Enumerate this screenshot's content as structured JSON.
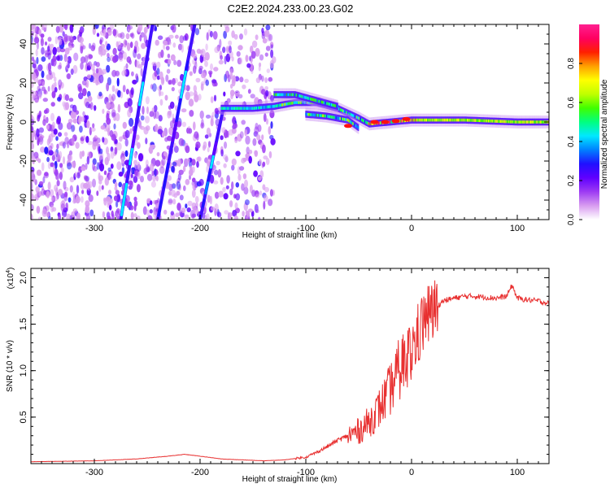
{
  "title": "C2E2.2024.233.00.23.G02",
  "chart_data": [
    {
      "type": "heatmap",
      "xlabel": "Height of straight line (km)",
      "ylabel": "Frequency (Hz)",
      "xlim": [
        -360,
        130
      ],
      "ylim": [
        -50,
        50
      ],
      "xticks": [
        -300,
        -200,
        -100,
        0,
        100
      ],
      "xtick_labels": [
        "-300",
        "-200",
        "-100",
        "0",
        "100"
      ],
      "yticks": [
        -40,
        -20,
        0,
        20,
        40
      ],
      "ytick_labels": [
        "-40",
        "-20",
        "0",
        "20",
        "40"
      ],
      "colorbar": {
        "label": "Normalized spectral amplitude",
        "range": [
          0,
          1
        ],
        "ticks": [
          0.0,
          0.2,
          0.4,
          0.6,
          0.8
        ],
        "tick_labels": [
          "0.0",
          "0.2",
          "0.4",
          "0.6",
          "0.8"
        ],
        "colors": [
          "#ffffff",
          "#d89cf0",
          "#9d3bf3",
          "#6000ff",
          "#2010ff",
          "#0080ff",
          "#00e8ff",
          "#00ff80",
          "#40ff00",
          "#c0ff00",
          "#ffff00",
          "#ffa000",
          "#ff2000",
          "#ff0060",
          "#ff2090"
        ]
      },
      "features": [
        {
          "name": "main signal track",
          "x": [
            -180,
            -150,
            -130,
            -110,
            -90,
            -70,
            -50,
            -40,
            -20,
            0,
            50,
            100,
            130
          ],
          "y": [
            7,
            7,
            8,
            10,
            10,
            7,
            2,
            -1,
            0,
            1,
            1,
            0,
            0
          ]
        },
        {
          "name": "upper branch",
          "x": [
            -130,
            -110,
            -90,
            -70
          ],
          "y": [
            14,
            14,
            11,
            8
          ]
        },
        {
          "name": "lower branch",
          "x": [
            -100,
            -80,
            -60,
            -50
          ],
          "y": [
            4,
            3,
            1,
            -3
          ]
        },
        {
          "name": "diagonal trace 1",
          "x": [
            -275,
            -245
          ],
          "y": [
            -50,
            50
          ]
        },
        {
          "name": "diagonal trace 2",
          "x": [
            -240,
            -205
          ],
          "y": [
            -50,
            50
          ]
        },
        {
          "name": "diagonal trace 3",
          "x": [
            -200,
            -178
          ],
          "y": [
            -50,
            7
          ]
        }
      ]
    },
    {
      "type": "line",
      "xlabel": "Height of straight line (km)",
      "ylabel": "SNR (10 * v/v)",
      "y_multiplier": "(x10",
      "y_multiplier_exp": "4",
      "xlim": [
        -360,
        130
      ],
      "ylim": [
        0,
        2.1
      ],
      "xticks": [
        -300,
        -200,
        -100,
        0,
        100
      ],
      "xtick_labels": [
        "-300",
        "-200",
        "-100",
        "0",
        "100"
      ],
      "yticks": [
        0.5,
        1.0,
        1.5,
        2.0
      ],
      "ytick_labels": [
        "0.5",
        "1.0",
        "1.5",
        "2.0"
      ],
      "color": "#e83030",
      "series": [
        {
          "x": [
            -360,
            -300,
            -260,
            -230,
            -215,
            -200,
            -180,
            -160,
            -140,
            -120,
            -100,
            -90,
            -80,
            -70,
            -60,
            -50,
            -40,
            -30,
            -20,
            -10,
            0,
            5,
            10,
            15,
            20,
            25,
            30,
            40,
            50,
            60,
            70,
            80,
            90,
            95,
            100,
            110,
            120,
            130
          ],
          "y": [
            0.02,
            0.03,
            0.05,
            0.08,
            0.1,
            0.08,
            0.05,
            0.04,
            0.03,
            0.04,
            0.07,
            0.12,
            0.18,
            0.25,
            0.3,
            0.35,
            0.45,
            0.6,
            0.8,
            1.05,
            1.2,
            1.35,
            1.5,
            1.6,
            1.62,
            1.7,
            1.75,
            1.78,
            1.8,
            1.8,
            1.79,
            1.78,
            1.8,
            1.92,
            1.78,
            1.76,
            1.75,
            1.72
          ]
        }
      ]
    }
  ]
}
